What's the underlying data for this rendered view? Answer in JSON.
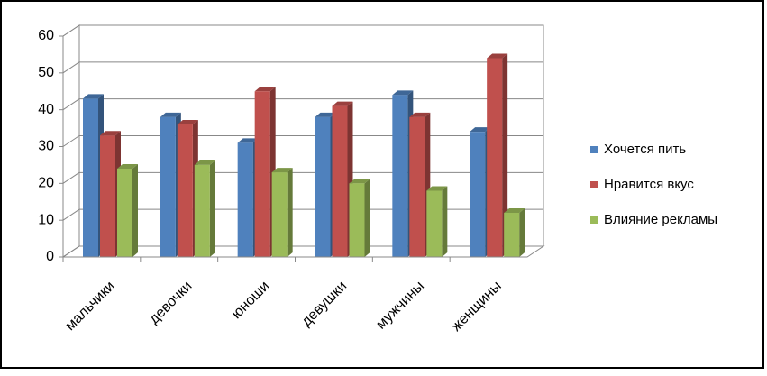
{
  "chart_data": {
    "type": "bar3d",
    "categories": [
      "мальчики",
      "девочки",
      "юноши",
      "девушки",
      "мужчины",
      "женщины"
    ],
    "series": [
      {
        "name": "Хочется пить",
        "color": "#4f81bd",
        "values": [
          43,
          38,
          31,
          38,
          44,
          34
        ]
      },
      {
        "name": "Нравится вкус",
        "color": "#c0504d",
        "values": [
          33,
          36,
          45,
          41,
          38,
          54
        ]
      },
      {
        "name": "Влияние рекламы",
        "color": "#9bbb59",
        "values": [
          24,
          25,
          23,
          20,
          18,
          12
        ]
      }
    ],
    "ylim": [
      0,
      60
    ],
    "yticks": [
      0,
      10,
      20,
      30,
      40,
      50,
      60
    ],
    "grid": true,
    "legend": "right"
  }
}
